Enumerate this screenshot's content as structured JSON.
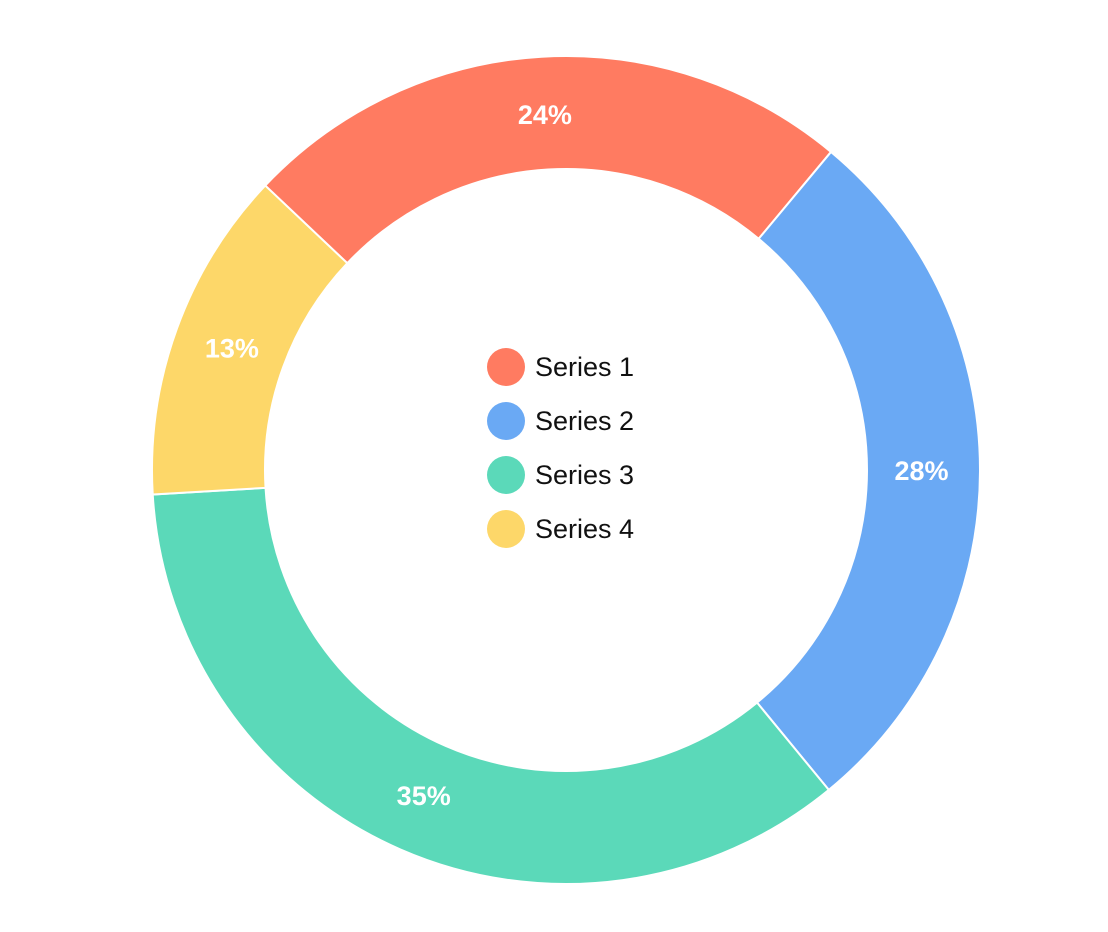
{
  "chart_data": {
    "type": "pie",
    "variant": "donut",
    "legend_position": "center",
    "series": [
      {
        "name": "Series 1",
        "value": 24,
        "label": "24%",
        "color": "#FF7B61"
      },
      {
        "name": "Series 2",
        "value": 28,
        "label": "28%",
        "color": "#6AA9F4"
      },
      {
        "name": "Series 3",
        "value": 35,
        "label": "35%",
        "color": "#5BD9B9"
      },
      {
        "name": "Series 4",
        "value": 13,
        "label": "13%",
        "color": "#FDD769"
      }
    ]
  }
}
